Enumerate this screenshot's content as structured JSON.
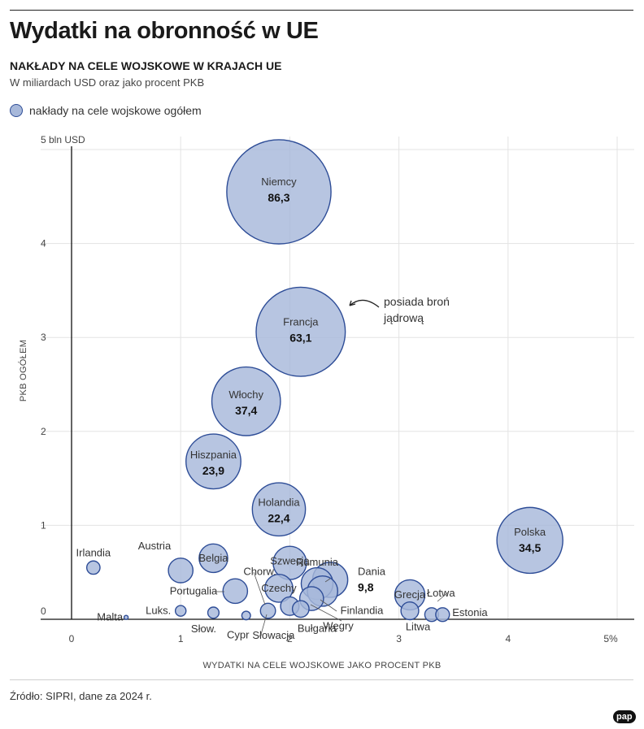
{
  "header": {
    "title": "Wydatki na obronność w UE",
    "subtitle": "NAKŁADY NA CELE WOJSKOWE W KRAJACH UE",
    "note": "W miliardach USD oraz jako procent PKB"
  },
  "legend": {
    "label": "nakłady na cele wojskowe ogółem"
  },
  "annotation": {
    "line1": "posiada broń",
    "line2": "jądrową"
  },
  "footer": {
    "source": "Źródło: SIPRI, dane za 2024 r.",
    "logo": "pap"
  },
  "colors": {
    "bubble_fill": "#a7b8da",
    "bubble_stroke": "#2e4d97",
    "overlap_fill": "#5b76b3"
  },
  "chart_data": {
    "type": "scatter",
    "xlabel": "WYDATKI NA CELE WOJSKOWE JAKO PROCENT PKB",
    "ylabel": "PKB OGÓŁEM",
    "xlim": [
      0,
      5
    ],
    "ylim": [
      0,
      5
    ],
    "x_ticks": [
      "0",
      "1",
      "2",
      "3",
      "4",
      "5%"
    ],
    "y_ticks": [
      "0",
      "1",
      "2",
      "3",
      "4",
      "5 bln USD"
    ],
    "grid": true,
    "size_metric": "nakłady na cele wojskowe ogółem",
    "points": [
      {
        "name": "Niemcy",
        "x": 1.9,
        "y": 4.55,
        "size": 86.3,
        "label": "86,3"
      },
      {
        "name": "Francja",
        "x": 2.1,
        "y": 3.06,
        "size": 63.1,
        "label": "63,1"
      },
      {
        "name": "Włochy",
        "x": 1.6,
        "y": 2.32,
        "size": 37.4,
        "label": "37,4"
      },
      {
        "name": "Hiszpania",
        "x": 1.3,
        "y": 1.68,
        "size": 23.9,
        "label": "23,9"
      },
      {
        "name": "Holandia",
        "x": 1.9,
        "y": 1.17,
        "size": 22.4,
        "label": "22,4"
      },
      {
        "name": "Polska",
        "x": 4.2,
        "y": 0.84,
        "size": 34.5,
        "label": "34,5"
      },
      {
        "name": "Dania",
        "x": 2.37,
        "y": 0.42,
        "size": 9.8,
        "label": "9,8"
      },
      {
        "name": "Szwecja",
        "x": 2.0,
        "y": 0.6,
        "size": 8.8,
        "label": ""
      },
      {
        "name": "Belgia",
        "x": 1.3,
        "y": 0.65,
        "size": 6.5,
        "label": ""
      },
      {
        "name": "Austria",
        "x": 1.0,
        "y": 0.52,
        "size": 4.8,
        "label": ""
      },
      {
        "name": "Rumunia",
        "x": 2.25,
        "y": 0.38,
        "size": 8.0,
        "label": ""
      },
      {
        "name": "Czechy",
        "x": 1.9,
        "y": 0.33,
        "size": 6.2,
        "label": ""
      },
      {
        "name": "Portugalia",
        "x": 1.5,
        "y": 0.3,
        "size": 4.8,
        "label": ""
      },
      {
        "name": "Grecja",
        "x": 3.1,
        "y": 0.26,
        "size": 7.2,
        "label": ""
      },
      {
        "name": "Finlandia",
        "x": 2.3,
        "y": 0.3,
        "size": 7.3,
        "label": ""
      },
      {
        "name": "Węgry",
        "x": 2.2,
        "y": 0.22,
        "size": 4.5,
        "label": ""
      },
      {
        "name": "Irlandia",
        "x": 0.2,
        "y": 0.55,
        "size": 1.4,
        "label": ""
      },
      {
        "name": "Słowacja",
        "x": 2.0,
        "y": 0.14,
        "size": 2.7,
        "label": ""
      },
      {
        "name": "Bułgaria",
        "x": 2.1,
        "y": 0.11,
        "size": 2.2,
        "label": ""
      },
      {
        "name": "Chorw.",
        "x": 1.8,
        "y": 0.09,
        "size": 1.8,
        "label": ""
      },
      {
        "name": "Litwa",
        "x": 3.1,
        "y": 0.09,
        "size": 2.5,
        "label": ""
      },
      {
        "name": "Łotwa",
        "x": 3.3,
        "y": 0.05,
        "size": 1.5,
        "label": ""
      },
      {
        "name": "Estonia",
        "x": 3.4,
        "y": 0.05,
        "size": 1.5,
        "label": ""
      },
      {
        "name": "Słow.",
        "x": 1.3,
        "y": 0.07,
        "size": 1.0,
        "label": ""
      },
      {
        "name": "Luks.",
        "x": 1.0,
        "y": 0.09,
        "size": 0.9,
        "label": ""
      },
      {
        "name": "Cypr",
        "x": 1.6,
        "y": 0.04,
        "size": 0.6,
        "label": ""
      },
      {
        "name": "Malta",
        "x": 0.5,
        "y": 0.02,
        "size": 0.1,
        "label": ""
      }
    ]
  }
}
